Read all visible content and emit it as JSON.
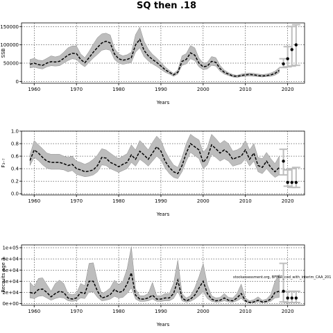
{
  "title": "SQ then .18",
  "chart_data": [
    {
      "type": "line",
      "ylabel": "SSB",
      "xlabel": "Years",
      "xlim": [
        1957,
        2024
      ],
      "ylim": [
        -5000,
        160000
      ],
      "xticks": [
        1960,
        1970,
        1980,
        1990,
        2000,
        2010,
        2020
      ],
      "yticks": [
        0,
        50000,
        100000,
        150000
      ],
      "ytick_labels": [
        "0",
        "50000",
        "100000",
        "150000"
      ],
      "grid": true,
      "x": [
        1959,
        1960,
        1961,
        1962,
        1963,
        1964,
        1965,
        1966,
        1967,
        1968,
        1969,
        1970,
        1971,
        1972,
        1973,
        1974,
        1975,
        1976,
        1977,
        1978,
        1979,
        1980,
        1981,
        1982,
        1983,
        1984,
        1985,
        1986,
        1987,
        1988,
        1989,
        1990,
        1991,
        1992,
        1993,
        1994,
        1995,
        1996,
        1997,
        1998,
        1999,
        2000,
        2001,
        2002,
        2003,
        2004,
        2005,
        2006,
        2007,
        2008,
        2009,
        2010,
        2011,
        2012,
        2013,
        2014,
        2015,
        2016,
        2017,
        2018
      ],
      "series": [
        {
          "values": [
            47000,
            50000,
            46000,
            44000,
            50000,
            54000,
            53000,
            55000,
            63000,
            72000,
            77000,
            76000,
            60000,
            51000,
            65000,
            80000,
            93000,
            105000,
            110000,
            105000,
            75000,
            62000,
            58000,
            60000,
            65000,
            100000,
            115000,
            85000,
            70000,
            60000,
            52000,
            42000,
            32000,
            25000,
            18000,
            25000,
            55000,
            60000,
            78000,
            72000,
            50000,
            40000,
            42000,
            55000,
            52000,
            35000,
            25000,
            20000,
            15000,
            14000,
            16000,
            18000,
            19000,
            18000,
            16000,
            15000,
            16000,
            18000,
            22000,
            30000
          ]
        }
      ],
      "band_upper": [
        60000,
        63000,
        58000,
        57000,
        63000,
        70000,
        67000,
        70000,
        80000,
        92000,
        97000,
        97000,
        75000,
        65000,
        82000,
        102000,
        120000,
        130000,
        132000,
        127000,
        90000,
        75000,
        70000,
        73000,
        80000,
        128000,
        148000,
        110000,
        88000,
        74000,
        64000,
        52000,
        40000,
        30000,
        22000,
        31000,
        70000,
        76000,
        98000,
        92000,
        64000,
        50000,
        52000,
        68000,
        65000,
        44000,
        31000,
        24000,
        19000,
        17000,
        20000,
        22000,
        23000,
        22000,
        20000,
        19000,
        20000,
        23000,
        28000,
        38000
      ],
      "band_lower": [
        37000,
        39000,
        36000,
        34000,
        40000,
        43000,
        42000,
        43000,
        50000,
        57000,
        62000,
        60000,
        48000,
        40000,
        52000,
        64000,
        74000,
        85000,
        88000,
        85000,
        60000,
        50000,
        47000,
        49000,
        52000,
        80000,
        92000,
        68000,
        56000,
        48000,
        41000,
        33000,
        25000,
        20000,
        14000,
        20000,
        44000,
        48000,
        62000,
        57000,
        40000,
        32000,
        34000,
        44000,
        42000,
        28000,
        20000,
        16000,
        12000,
        11000,
        13000,
        14000,
        15000,
        14000,
        13000,
        12000,
        13000,
        14000,
        17000,
        24000
      ],
      "projection_points": [
        {
          "x": 2019,
          "y": 48000
        },
        {
          "x": 2020,
          "y": 62000
        },
        {
          "x": 2021,
          "y": 87000
        },
        {
          "x": 2022,
          "y": 100000
        }
      ],
      "projection_intervals": [
        {
          "x": 2019,
          "lo": 38000,
          "hi": 62000
        },
        {
          "x": 2020,
          "lo": 40000,
          "hi": 95000
        },
        {
          "x": 2021,
          "lo": 42000,
          "hi": 150000
        },
        {
          "x": 2022,
          "lo": 44000,
          "hi": 155000
        }
      ]
    },
    {
      "type": "line",
      "ylabel": "F₃₋₇",
      "xlabel": "Years",
      "xlim": [
        1957,
        2024
      ],
      "ylim": [
        -0.02,
        1.0
      ],
      "xticks": [
        1960,
        1970,
        1980,
        1990,
        2000,
        2010,
        2020
      ],
      "yticks": [
        0,
        0.2,
        0.4,
        0.6,
        0.8,
        1.0
      ],
      "ytick_labels": [
        "0.0",
        "0.2",
        "0.4",
        "0.6",
        "0.8",
        "1.0"
      ],
      "grid": true,
      "x": [
        1959,
        1960,
        1961,
        1962,
        1963,
        1964,
        1965,
        1966,
        1967,
        1968,
        1969,
        1970,
        1971,
        1972,
        1973,
        1974,
        1975,
        1976,
        1977,
        1978,
        1979,
        1980,
        1981,
        1982,
        1983,
        1984,
        1985,
        1986,
        1987,
        1988,
        1989,
        1990,
        1991,
        1992,
        1993,
        1994,
        1995,
        1996,
        1997,
        1998,
        1999,
        2000,
        2001,
        2002,
        2003,
        2004,
        2005,
        2006,
        2007,
        2008,
        2009,
        2010,
        2011,
        2012,
        2013,
        2014,
        2015,
        2016,
        2017,
        2018
      ],
      "series": [
        {
          "values": [
            0.53,
            0.7,
            0.65,
            0.58,
            0.52,
            0.5,
            0.5,
            0.5,
            0.48,
            0.45,
            0.47,
            0.4,
            0.38,
            0.35,
            0.36,
            0.38,
            0.45,
            0.58,
            0.57,
            0.5,
            0.47,
            0.43,
            0.47,
            0.5,
            0.62,
            0.55,
            0.68,
            0.62,
            0.55,
            0.65,
            0.75,
            0.68,
            0.52,
            0.42,
            0.35,
            0.32,
            0.45,
            0.65,
            0.8,
            0.75,
            0.7,
            0.5,
            0.58,
            0.78,
            0.72,
            0.65,
            0.7,
            0.65,
            0.55,
            0.58,
            0.6,
            0.7,
            0.55,
            0.65,
            0.45,
            0.42,
            0.52,
            0.42,
            0.35,
            0.42
          ]
        }
      ],
      "band_upper": [
        0.62,
        0.85,
        0.78,
        0.72,
        0.65,
        0.63,
        0.63,
        0.63,
        0.6,
        0.58,
        0.6,
        0.52,
        0.5,
        0.47,
        0.5,
        0.55,
        0.62,
        0.72,
        0.7,
        0.65,
        0.6,
        0.56,
        0.6,
        0.64,
        0.78,
        0.7,
        0.85,
        0.78,
        0.7,
        0.82,
        0.92,
        0.85,
        0.68,
        0.56,
        0.46,
        0.42,
        0.58,
        0.8,
        0.95,
        0.9,
        0.86,
        0.66,
        0.74,
        0.95,
        0.88,
        0.8,
        0.85,
        0.8,
        0.68,
        0.7,
        0.74,
        0.85,
        0.7,
        0.8,
        0.58,
        0.56,
        0.66,
        0.56,
        0.48,
        0.6
      ],
      "band_lower": [
        0.45,
        0.58,
        0.53,
        0.46,
        0.41,
        0.39,
        0.39,
        0.39,
        0.38,
        0.35,
        0.37,
        0.31,
        0.29,
        0.27,
        0.28,
        0.3,
        0.35,
        0.46,
        0.45,
        0.4,
        0.37,
        0.34,
        0.37,
        0.4,
        0.5,
        0.44,
        0.55,
        0.5,
        0.44,
        0.52,
        0.6,
        0.54,
        0.41,
        0.32,
        0.26,
        0.24,
        0.35,
        0.52,
        0.66,
        0.61,
        0.56,
        0.4,
        0.46,
        0.63,
        0.58,
        0.52,
        0.56,
        0.52,
        0.44,
        0.46,
        0.48,
        0.56,
        0.44,
        0.52,
        0.35,
        0.32,
        0.4,
        0.32,
        0.26,
        0.3
      ],
      "projection_points": [
        {
          "x": 2019,
          "y": 0.52
        },
        {
          "x": 2020,
          "y": 0.18
        },
        {
          "x": 2021,
          "y": 0.18
        },
        {
          "x": 2022,
          "y": 0.18
        }
      ],
      "projection_intervals": [
        {
          "x": 2019,
          "lo": 0.3,
          "hi": 0.71
        },
        {
          "x": 2020,
          "lo": 0.12,
          "hi": 0.38
        },
        {
          "x": 2021,
          "lo": 0.1,
          "hi": 0.4
        },
        {
          "x": 2022,
          "lo": 0.1,
          "hi": 0.42
        }
      ]
    },
    {
      "type": "line",
      "ylabel": "Recruits age 3",
      "xlabel": "Years",
      "xlim": [
        1957,
        2024
      ],
      "ylim": [
        -3000,
        105000
      ],
      "xticks": [
        1960,
        1970,
        1980,
        1990,
        2000,
        2010,
        2020
      ],
      "yticks": [
        0,
        20000,
        40000,
        60000,
        80000,
        100000
      ],
      "ytick_labels": [
        "0e+00",
        "2e+04",
        "4e+04",
        "6e+04",
        "8e+04",
        "1e+05"
      ],
      "grid": true,
      "x": [
        1959,
        1960,
        1961,
        1962,
        1963,
        1964,
        1965,
        1966,
        1967,
        1968,
        1969,
        1970,
        1971,
        1972,
        1973,
        1974,
        1975,
        1976,
        1977,
        1978,
        1979,
        1980,
        1981,
        1982,
        1983,
        1984,
        1985,
        1986,
        1987,
        1988,
        1989,
        1990,
        1991,
        1992,
        1993,
        1994,
        1995,
        1996,
        1997,
        1998,
        1999,
        2000,
        2001,
        2002,
        2003,
        2004,
        2005,
        2006,
        2007,
        2008,
        2009,
        2010,
        2011,
        2012,
        2013,
        2014,
        2015,
        2016,
        2017,
        2018
      ],
      "series": [
        {
          "values": [
            20000,
            18000,
            25000,
            26000,
            20000,
            12000,
            18000,
            22000,
            20000,
            10000,
            8000,
            10000,
            20000,
            18000,
            40000,
            40000,
            22000,
            10000,
            12000,
            16000,
            25000,
            20000,
            22000,
            35000,
            55000,
            15000,
            8000,
            8000,
            10000,
            15000,
            8000,
            8000,
            10000,
            10000,
            18000,
            42000,
            10000,
            5000,
            8000,
            15000,
            28000,
            40000,
            18000,
            8000,
            5000,
            6000,
            10000,
            6000,
            5000,
            10000,
            18000,
            5000,
            2000,
            3000,
            6000,
            3000,
            4000,
            8000,
            20000,
            22000
          ]
        }
      ],
      "band_upper": [
        38000,
        30000,
        45000,
        46000,
        34000,
        22000,
        36000,
        42000,
        36000,
        18000,
        16000,
        18000,
        36000,
        32000,
        72000,
        73000,
        40000,
        18000,
        22000,
        28000,
        42000,
        34000,
        40000,
        62000,
        102000,
        26000,
        14000,
        14000,
        18000,
        38000,
        14000,
        14000,
        18000,
        18000,
        36000,
        78000,
        18000,
        10000,
        14000,
        28000,
        48000,
        72000,
        34000,
        14000,
        10000,
        11000,
        18000,
        11000,
        10000,
        18000,
        35000,
        10000,
        5000,
        7000,
        12000,
        6000,
        8000,
        16000,
        40000,
        52000
      ],
      "band_lower": [
        10000,
        9000,
        13000,
        14000,
        10000,
        6000,
        9000,
        11000,
        10000,
        5000,
        4000,
        5000,
        10000,
        9000,
        21000,
        21000,
        11000,
        5000,
        6000,
        8000,
        13000,
        10000,
        11000,
        18000,
        28000,
        8000,
        4000,
        4000,
        5000,
        8000,
        4000,
        4000,
        5000,
        5000,
        9000,
        22000,
        5000,
        2500,
        4000,
        8000,
        14000,
        21000,
        9000,
        4000,
        2500,
        3000,
        5000,
        3000,
        2500,
        5000,
        9000,
        2500,
        800,
        1200,
        3000,
        1200,
        1800,
        4000,
        10000,
        11000
      ],
      "projection_points": [
        {
          "x": 2019,
          "y": 22000
        },
        {
          "x": 2020,
          "y": 10000
        },
        {
          "x": 2021,
          "y": 10000
        },
        {
          "x": 2022,
          "y": 10000
        }
      ],
      "projection_intervals": [
        {
          "x": 2019,
          "lo": 3000,
          "hi": 72000
        },
        {
          "x": 2020,
          "lo": 2000,
          "hi": 22000
        },
        {
          "x": 2021,
          "lo": 2000,
          "hi": 22000
        },
        {
          "x": 2022,
          "lo": 2000,
          "hi": 22000
        }
      ],
      "annotation": "stockassessment.org, BFFAR_cod_with_interim_CAA_201"
    }
  ]
}
